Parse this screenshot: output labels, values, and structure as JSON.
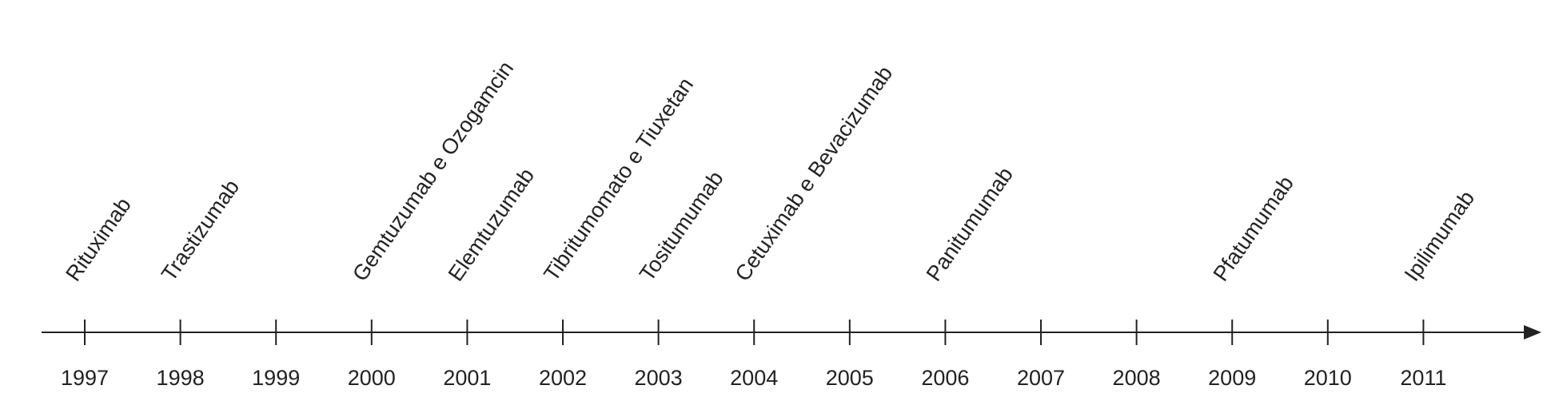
{
  "timeline": {
    "years": [
      "1997",
      "1998",
      "1999",
      "2000",
      "2001",
      "2002",
      "2003",
      "2004",
      "2005",
      "2006",
      "2007",
      "2008",
      "2009",
      "2010",
      "2011"
    ],
    "labels": [
      "Rituximab",
      "Trastizumab",
      null,
      "Gemtuzumab e Ozogamcin",
      "Elemtuzumab",
      "Tibritumomato e Tiuxetan",
      "Tositumumab",
      "Cetuximab e Bevacizumab",
      null,
      "Panitumumab",
      null,
      null,
      "Pfatumumab",
      null,
      "Ipilimumab"
    ]
  }
}
